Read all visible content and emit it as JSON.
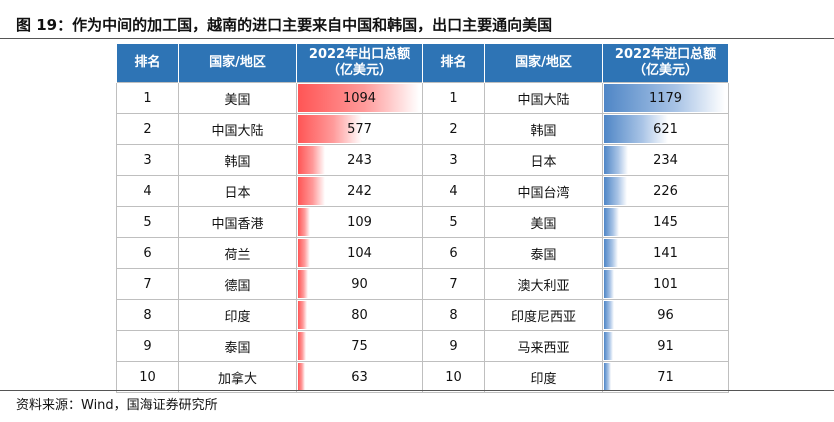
{
  "title": "图 19：作为中间的加工国，越南的进口主要来自中国和韩国，出口主要通向美国",
  "source": "资料来源：Wind，国海证券研究所",
  "export_table": {
    "headers": {
      "rank": "排名",
      "country": "国家/地区",
      "value": "2022年出口总额",
      "unit": "（亿美元）"
    },
    "rows": [
      {
        "rank": "1",
        "country": "美国",
        "value": 1094
      },
      {
        "rank": "2",
        "country": "中国大陆",
        "value": 577
      },
      {
        "rank": "3",
        "country": "韩国",
        "value": 243
      },
      {
        "rank": "4",
        "country": "日本",
        "value": 242
      },
      {
        "rank": "5",
        "country": "中国香港",
        "value": 109
      },
      {
        "rank": "6",
        "country": "荷兰",
        "value": 104
      },
      {
        "rank": "7",
        "country": "德国",
        "value": 90
      },
      {
        "rank": "8",
        "country": "印度",
        "value": 80
      },
      {
        "rank": "9",
        "country": "泰国",
        "value": 75
      },
      {
        "rank": "10",
        "country": "加拿大",
        "value": 63
      }
    ]
  },
  "import_table": {
    "headers": {
      "rank": "排名",
      "country": "国家/地区",
      "value": "2022年进口总额",
      "unit": "（亿美元）"
    },
    "rows": [
      {
        "rank": "1",
        "country": "中国大陆",
        "value": 1179
      },
      {
        "rank": "2",
        "country": "韩国",
        "value": 621
      },
      {
        "rank": "3",
        "country": "日本",
        "value": 234
      },
      {
        "rank": "4",
        "country": "中国台湾",
        "value": 226
      },
      {
        "rank": "5",
        "country": "美国",
        "value": 145
      },
      {
        "rank": "6",
        "country": "泰国",
        "value": 141
      },
      {
        "rank": "7",
        "country": "澳大利亚",
        "value": 101
      },
      {
        "rank": "8",
        "country": "印度尼西亚",
        "value": 96
      },
      {
        "rank": "9",
        "country": "马来西亚",
        "value": 91
      },
      {
        "rank": "10",
        "country": "印度",
        "value": 71
      }
    ]
  },
  "colors": {
    "header_bg": "#2e74b5",
    "export_bar": "#ff5555",
    "import_bar": "#4f86c6"
  }
}
